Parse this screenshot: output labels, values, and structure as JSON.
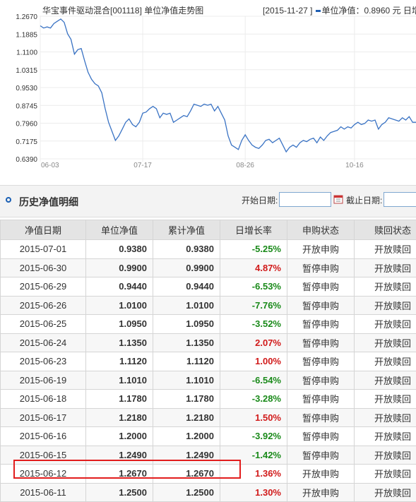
{
  "chart": {
    "title": "华宝事件驱动混合[001118] 单位净值走势图",
    "info_date": "[2015-11-27 ]",
    "info_label": "单位净值：0.8960 元",
    "info_suffix": "日增长",
    "line_color": "#3a73c4"
  },
  "chart_data": {
    "type": "line",
    "y_ticks": [
      "1.2670",
      "1.1885",
      "1.1100",
      "1.0315",
      "0.9530",
      "0.8745",
      "0.7960",
      "0.7175",
      "0.6390"
    ],
    "ylim": [
      0.639,
      1.267
    ],
    "x_ticks": [
      "06-03",
      "07-17",
      "08-26",
      "10-16"
    ],
    "x_tick_index": [
      0,
      30,
      60,
      92
    ],
    "series": [
      {
        "values": [
          1.225,
          1.215,
          1.22,
          1.215,
          1.235,
          1.245,
          1.255,
          1.24,
          1.19,
          1.165,
          1.1,
          1.12,
          1.125,
          1.07,
          1.02,
          0.99,
          0.97,
          0.96,
          0.93,
          0.86,
          0.8,
          0.76,
          0.72,
          0.74,
          0.77,
          0.8,
          0.815,
          0.79,
          0.78,
          0.8,
          0.84,
          0.845,
          0.86,
          0.87,
          0.86,
          0.82,
          0.84,
          0.835,
          0.84,
          0.8,
          0.81,
          0.82,
          0.83,
          0.825,
          0.85,
          0.88,
          0.875,
          0.87,
          0.88,
          0.875,
          0.88,
          0.85,
          0.87,
          0.84,
          0.81,
          0.74,
          0.7,
          0.69,
          0.68,
          0.72,
          0.745,
          0.72,
          0.7,
          0.69,
          0.685,
          0.7,
          0.72,
          0.725,
          0.71,
          0.72,
          0.73,
          0.7,
          0.67,
          0.69,
          0.7,
          0.69,
          0.71,
          0.72,
          0.715,
          0.725,
          0.73,
          0.71,
          0.735,
          0.72,
          0.74,
          0.755,
          0.76,
          0.765,
          0.78,
          0.77,
          0.78,
          0.775,
          0.79,
          0.8,
          0.79,
          0.795,
          0.81,
          0.805,
          0.81,
          0.77,
          0.79,
          0.8,
          0.82,
          0.815,
          0.81,
          0.805,
          0.82,
          0.81,
          0.825,
          0.8,
          0.8
        ]
      }
    ]
  },
  "section": {
    "title": "历史净值明细",
    "start_label": "开始日期:",
    "end_label": "截止日期:",
    "start_value": "",
    "end_value": ""
  },
  "table": {
    "headers": [
      "净值日期",
      "单位净值",
      "累计净值",
      "日增长率",
      "申购状态",
      "赎回状态"
    ],
    "rows": [
      {
        "date": "2015-07-01",
        "unit": "0.9380",
        "acc": "0.9380",
        "rate": "-5.25%",
        "buy": "开放申购",
        "redeem": "开放赎回"
      },
      {
        "date": "2015-06-30",
        "unit": "0.9900",
        "acc": "0.9900",
        "rate": "4.87%",
        "buy": "暂停申购",
        "redeem": "开放赎回"
      },
      {
        "date": "2015-06-29",
        "unit": "0.9440",
        "acc": "0.9440",
        "rate": "-6.53%",
        "buy": "暂停申购",
        "redeem": "开放赎回"
      },
      {
        "date": "2015-06-26",
        "unit": "1.0100",
        "acc": "1.0100",
        "rate": "-7.76%",
        "buy": "暂停申购",
        "redeem": "开放赎回"
      },
      {
        "date": "2015-06-25",
        "unit": "1.0950",
        "acc": "1.0950",
        "rate": "-3.52%",
        "buy": "暂停申购",
        "redeem": "开放赎回"
      },
      {
        "date": "2015-06-24",
        "unit": "1.1350",
        "acc": "1.1350",
        "rate": "2.07%",
        "buy": "暂停申购",
        "redeem": "开放赎回"
      },
      {
        "date": "2015-06-23",
        "unit": "1.1120",
        "acc": "1.1120",
        "rate": "1.00%",
        "buy": "暂停申购",
        "redeem": "开放赎回"
      },
      {
        "date": "2015-06-19",
        "unit": "1.1010",
        "acc": "1.1010",
        "rate": "-6.54%",
        "buy": "暂停申购",
        "redeem": "开放赎回"
      },
      {
        "date": "2015-06-18",
        "unit": "1.1780",
        "acc": "1.1780",
        "rate": "-3.28%",
        "buy": "暂停申购",
        "redeem": "开放赎回"
      },
      {
        "date": "2015-06-17",
        "unit": "1.2180",
        "acc": "1.2180",
        "rate": "1.50%",
        "buy": "暂停申购",
        "redeem": "开放赎回"
      },
      {
        "date": "2015-06-16",
        "unit": "1.2000",
        "acc": "1.2000",
        "rate": "-3.92%",
        "buy": "暂停申购",
        "redeem": "开放赎回"
      },
      {
        "date": "2015-06-15",
        "unit": "1.2490",
        "acc": "1.2490",
        "rate": "-1.42%",
        "buy": "暂停申购",
        "redeem": "开放赎回"
      },
      {
        "date": "2015-06-12",
        "unit": "1.2670",
        "acc": "1.2670",
        "rate": "1.36%",
        "buy": "开放申购",
        "redeem": "开放赎回"
      },
      {
        "date": "2015-06-11",
        "unit": "1.2500",
        "acc": "1.2500",
        "rate": "1.30%",
        "buy": "开放申购",
        "redeem": "开放赎回"
      }
    ]
  }
}
